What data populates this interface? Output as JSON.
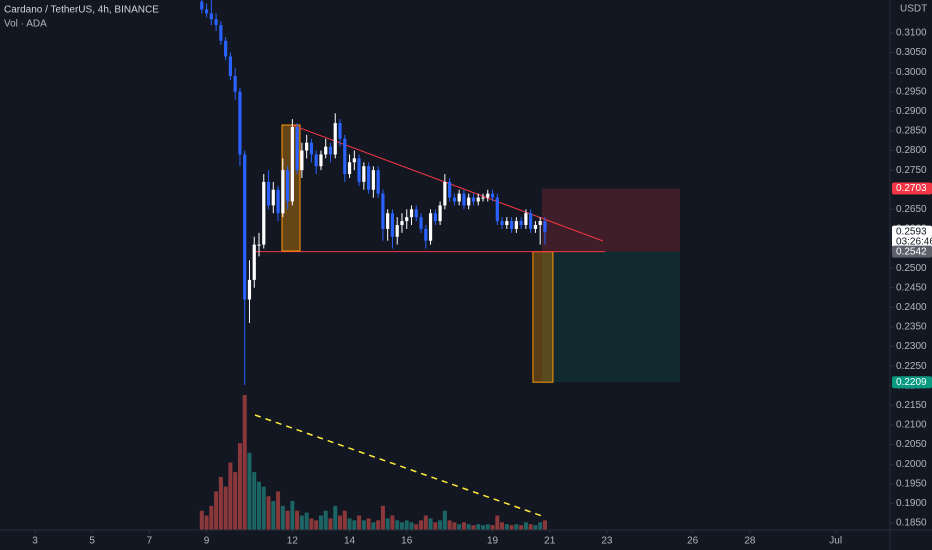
{
  "header": {
    "symbol": "Cardano / TetherUS, 4h, BINANCE",
    "volume_label": "Vol · ADA",
    "currency": "USDT"
  },
  "chart_data": {
    "type": "candlestick",
    "x": [
      8.833,
      9,
      9.167,
      9.333,
      9.5,
      9.667,
      9.833,
      10,
      10.167,
      10.333,
      10.5,
      10.667,
      10.833,
      11,
      11.167,
      11.333,
      11.5,
      11.667,
      11.833,
      12,
      12.167,
      12.333,
      12.5,
      12.667,
      12.833,
      13,
      13.167,
      13.333,
      13.5,
      13.667,
      13.833,
      14,
      14.167,
      14.333,
      14.5,
      14.667,
      14.833,
      15,
      15.167,
      15.333,
      15.5,
      15.667,
      15.833,
      16,
      16.167,
      16.333,
      16.5,
      16.667,
      16.833,
      17,
      17.167,
      17.333,
      17.5,
      17.667,
      17.833,
      18,
      18.167,
      18.333,
      18.5,
      18.667,
      18.833,
      19,
      19.167,
      19.333,
      19.5,
      19.667,
      19.833,
      20,
      20.167,
      20.333,
      20.5,
      20.667,
      20.833
    ],
    "open": [
      0.318,
      0.316,
      0.315,
      0.3135,
      0.312,
      0.308,
      0.304,
      0.299,
      0.295,
      0.279,
      0.242,
      0.247,
      0.256,
      0.256,
      0.272,
      0.266,
      0.27,
      0.264,
      0.275,
      0.267,
      0.286,
      0.275,
      0.28,
      0.282,
      0.279,
      0.276,
      0.279,
      0.281,
      0.279,
      0.287,
      0.283,
      0.274,
      0.277,
      0.278,
      0.272,
      0.276,
      0.27,
      0.275,
      0.269,
      0.26,
      0.264,
      0.258,
      0.261,
      0.262,
      0.263,
      0.265,
      0.263,
      0.26,
      0.257,
      0.264,
      0.262,
      0.266,
      0.272,
      0.268,
      0.267,
      0.269,
      0.266,
      0.268,
      0.267,
      0.268,
      0.268,
      0.269,
      0.268,
      0.262,
      0.261,
      0.262,
      0.26,
      0.262,
      0.261,
      0.264,
      0.26,
      0.261,
      0.262
    ],
    "high": [
      0.3195,
      0.3175,
      0.319,
      0.315,
      0.313,
      0.309,
      0.305,
      0.301,
      0.296,
      0.28,
      0.252,
      0.258,
      0.259,
      0.274,
      0.275,
      0.272,
      0.271,
      0.278,
      0.276,
      0.288,
      0.287,
      0.282,
      0.284,
      0.283,
      0.28,
      0.28,
      0.283,
      0.282,
      0.2895,
      0.288,
      0.284,
      0.279,
      0.28,
      0.279,
      0.277,
      0.277,
      0.276,
      0.276,
      0.27,
      0.265,
      0.265,
      0.263,
      0.264,
      0.265,
      0.266,
      0.266,
      0.264,
      0.261,
      0.265,
      0.265,
      0.267,
      0.274,
      0.273,
      0.269,
      0.27,
      0.27,
      0.269,
      0.269,
      0.269,
      0.269,
      0.27,
      0.27,
      0.269,
      0.263,
      0.263,
      0.263,
      0.263,
      0.263,
      0.265,
      0.265,
      0.262,
      0.263,
      0.263
    ],
    "low": [
      0.315,
      0.314,
      0.312,
      0.3105,
      0.307,
      0.303,
      0.298,
      0.293,
      0.276,
      0.2202,
      0.236,
      0.245,
      0.253,
      0.255,
      0.265,
      0.264,
      0.262,
      0.263,
      0.265,
      0.266,
      0.274,
      0.273,
      0.278,
      0.277,
      0.274,
      0.275,
      0.278,
      0.277,
      0.278,
      0.281,
      0.272,
      0.273,
      0.275,
      0.271,
      0.27,
      0.269,
      0.268,
      0.268,
      0.257,
      0.257,
      0.255,
      0.256,
      0.259,
      0.26,
      0.261,
      0.262,
      0.259,
      0.255,
      0.256,
      0.261,
      0.261,
      0.265,
      0.267,
      0.266,
      0.266,
      0.265,
      0.265,
      0.266,
      0.266,
      0.267,
      0.267,
      0.267,
      0.261,
      0.26,
      0.26,
      0.259,
      0.259,
      0.26,
      0.26,
      0.259,
      0.259,
      0.256,
      0.256
    ],
    "close": [
      0.316,
      0.315,
      0.3135,
      0.312,
      0.308,
      0.304,
      0.299,
      0.295,
      0.279,
      0.242,
      0.247,
      0.256,
      0.256,
      0.272,
      0.266,
      0.27,
      0.264,
      0.275,
      0.267,
      0.286,
      0.275,
      0.28,
      0.282,
      0.279,
      0.276,
      0.279,
      0.281,
      0.279,
      0.287,
      0.283,
      0.274,
      0.277,
      0.278,
      0.272,
      0.276,
      0.27,
      0.275,
      0.269,
      0.26,
      0.264,
      0.258,
      0.261,
      0.262,
      0.263,
      0.265,
      0.263,
      0.26,
      0.257,
      0.264,
      0.262,
      0.266,
      0.272,
      0.268,
      0.267,
      0.269,
      0.266,
      0.268,
      0.267,
      0.268,
      0.268,
      0.269,
      0.268,
      0.262,
      0.261,
      0.262,
      0.26,
      0.262,
      0.261,
      0.264,
      0.26,
      0.261,
      0.262,
      0.2593
    ],
    "volume": [
      20,
      15,
      25,
      40,
      55,
      45,
      70,
      60,
      90,
      140,
      80,
      60,
      50,
      45,
      35,
      30,
      40,
      25,
      20,
      30,
      20,
      15,
      18,
      12,
      10,
      15,
      20,
      12,
      25,
      15,
      20,
      12,
      10,
      15,
      10,
      12,
      8,
      10,
      25,
      12,
      15,
      10,
      8,
      10,
      8,
      6,
      10,
      15,
      12,
      8,
      10,
      20,
      10,
      8,
      6,
      8,
      6,
      5,
      6,
      5,
      6,
      5,
      15,
      8,
      6,
      5,
      6,
      5,
      8,
      6,
      5,
      8,
      10
    ],
    "up_color": "#ffffff",
    "down_color": "#2962ff",
    "volume_up_color": "#26a69a",
    "volume_down_color": "#ef5350",
    "xlim": [
      1.776,
      32.9
    ],
    "xticks": [
      3,
      5,
      7,
      9,
      12,
      14,
      16,
      19,
      21,
      23,
      26,
      28,
      {
        "value": 31,
        "label": "Jul"
      }
    ],
    "ylim": [
      0.1832,
      0.3184
    ],
    "yticks": [
      {
        "value": 0.31,
        "label": "0.3100"
      },
      {
        "value": 0.305,
        "label": "0.3050"
      },
      {
        "value": 0.3,
        "label": "0.3000"
      },
      {
        "value": 0.295,
        "label": "0.2950"
      },
      {
        "value": 0.29,
        "label": "0.2900"
      },
      {
        "value": 0.285,
        "label": "0.2850"
      },
      {
        "value": 0.28,
        "label": "0.2800"
      },
      {
        "value": 0.275,
        "label": "0.2750"
      },
      {
        "value": 0.27,
        "label": "0.2700"
      },
      {
        "value": 0.265,
        "label": "0.2650"
      },
      {
        "value": 0.26,
        "label": "0.2600"
      },
      {
        "value": 0.255,
        "label": "0.2550"
      },
      {
        "value": 0.25,
        "label": "0.2500"
      },
      {
        "value": 0.245,
        "label": "0.2450"
      },
      {
        "value": 0.24,
        "label": "0.2400"
      },
      {
        "value": 0.235,
        "label": "0.2350"
      },
      {
        "value": 0.23,
        "label": "0.2300"
      },
      {
        "value": 0.225,
        "label": "0.2250"
      },
      {
        "value": 0.22,
        "label": "0.2200"
      },
      {
        "value": 0.215,
        "label": "0.2150"
      },
      {
        "value": 0.21,
        "label": "0.2100"
      },
      {
        "value": 0.205,
        "label": "0.2050"
      },
      {
        "value": 0.2,
        "label": "0.2000"
      },
      {
        "value": 0.195,
        "label": "0.1950"
      },
      {
        "value": 0.19,
        "label": "0.1900"
      },
      {
        "value": 0.185,
        "label": "0.1850"
      }
    ],
    "price_labels": [
      {
        "value": 0.2703,
        "color": "#f23645"
      },
      {
        "value": 0.2593,
        "sublabel": "03:26:46",
        "color": "#ffffff"
      },
      {
        "value": 0.2542,
        "color": "#5d606b"
      },
      {
        "value": 0.2209,
        "color": "#089981"
      }
    ]
  }
}
